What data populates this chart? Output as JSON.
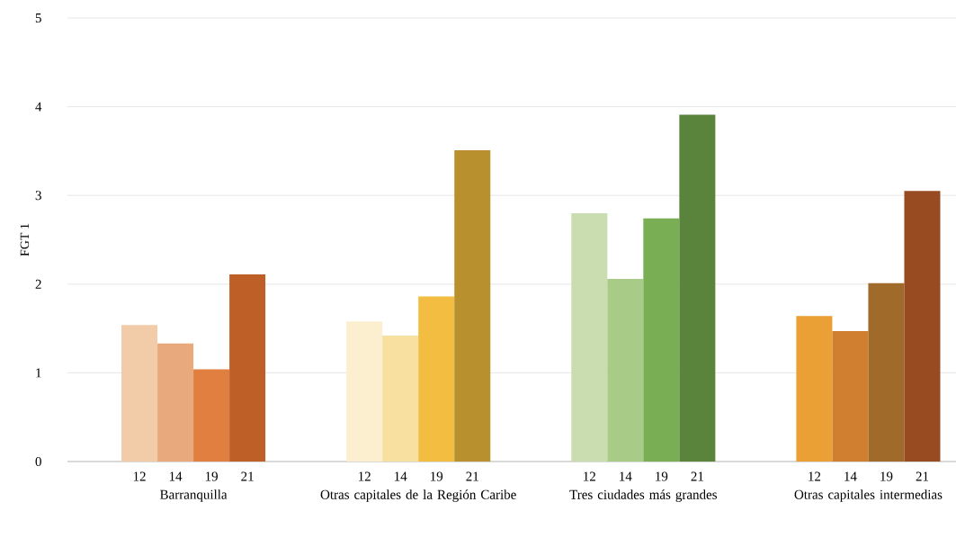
{
  "chart_data": {
    "type": "bar",
    "ylabel": "FGT 1",
    "categories": [
      "Barranquilla",
      "Otras capitales de la Región Caribe",
      "Tres ciudades más grandes",
      "Otras capitales intermedias"
    ],
    "series": [
      {
        "name": "12",
        "colors": [
          "#f2cba8",
          "#fcefcf",
          "#c9ddb0",
          "#eaa035"
        ],
        "values": [
          1.54,
          1.58,
          2.8,
          1.64
        ]
      },
      {
        "name": "14",
        "colors": [
          "#e8aa7c",
          "#f8e0a0",
          "#a8cc88",
          "#d07f30"
        ],
        "values": [
          1.33,
          1.42,
          2.06,
          1.47
        ]
      },
      {
        "name": "19",
        "colors": [
          "#e07f3f",
          "#f2bd40",
          "#7aae55",
          "#a06a2a"
        ],
        "values": [
          1.04,
          1.86,
          2.74,
          2.01
        ]
      },
      {
        "name": "21",
        "colors": [
          "#bf5f28",
          "#b8902e",
          "#5a843c",
          "#984a20"
        ],
        "values": [
          2.11,
          3.51,
          3.91,
          3.05
        ]
      }
    ],
    "ylim": [
      0,
      5
    ],
    "yticks": [
      0,
      1,
      2,
      3,
      4,
      5
    ],
    "grid": "y"
  }
}
